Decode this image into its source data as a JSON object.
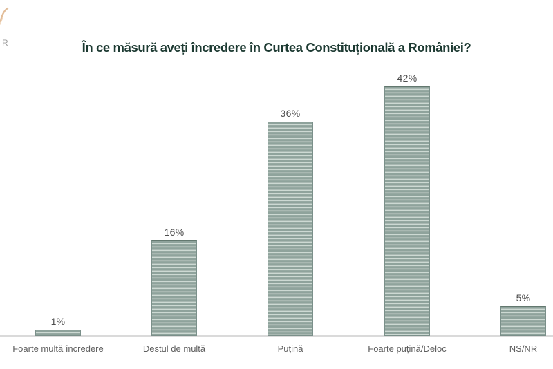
{
  "page": {
    "background_color": "#ffffff"
  },
  "logo": {
    "letter": "R",
    "accent_color": "#ddb287",
    "letter_color": "#9b9b9b"
  },
  "title": {
    "text": "În ce măsură aveți încredere în Curtea Constituțională a României?",
    "color": "#1d3a32"
  },
  "chart_data": {
    "type": "bar",
    "title": "În ce măsură aveți încredere în Curtea Constituțională a României?",
    "categories": [
      "Foarte multă încredere",
      "Destul de multă",
      "Puțină",
      "Foarte puțină/Deloc",
      "NS/NR"
    ],
    "values": [
      1,
      16,
      36,
      42,
      5
    ],
    "value_labels": [
      "1%",
      "16%",
      "36%",
      "42%",
      "5%"
    ],
    "unit": "%",
    "xlabel": "",
    "ylabel": "",
    "ylim": [
      0,
      45
    ],
    "grid": false,
    "legend": "none",
    "bar_color": "#8fa39c",
    "bar_stripe_light": "#cdd9d3",
    "bar_border_color": "#7b908a",
    "value_label_color": "#4d4d4d",
    "category_label_color": "#5f5f5f",
    "axis_line_color": "#dadada"
  }
}
